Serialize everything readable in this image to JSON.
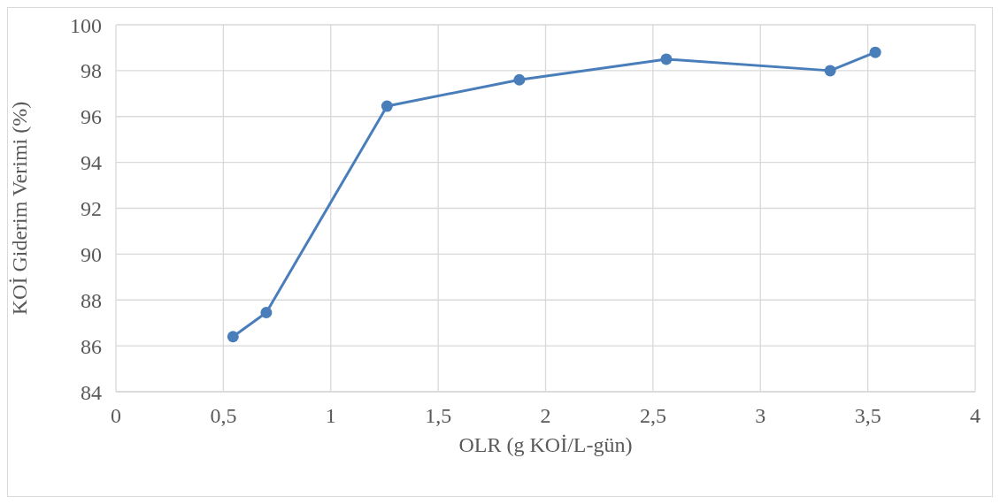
{
  "chart_data": {
    "type": "line",
    "xlabel": "OLR (g KOİ/L-gün)",
    "ylabel": "KOİ Giderim Verimi (%)",
    "x": [
      0.545,
      0.7,
      1.262,
      1.878,
      2.562,
      3.325,
      3.535
    ],
    "series": [
      {
        "color": "#4a7ebb",
        "values": [
          86.4,
          87.45,
          96.45,
          97.6,
          98.5,
          98.0,
          98.8
        ]
      }
    ],
    "xlim": [
      0,
      4
    ],
    "xticks": [
      0,
      {
        "value": 0.5,
        "label": "0,5"
      },
      1,
      {
        "value": 1.5,
        "label": "1,5"
      },
      2,
      {
        "value": 2.5,
        "label": "2,5"
      },
      3,
      {
        "value": 3.5,
        "label": "3,5"
      },
      4
    ],
    "ylim": [
      84,
      100
    ],
    "yticks": [
      84,
      86,
      88,
      90,
      92,
      94,
      96,
      98,
      100
    ],
    "grid": true,
    "legend": false,
    "marker": "circle",
    "line_style": "solid"
  }
}
